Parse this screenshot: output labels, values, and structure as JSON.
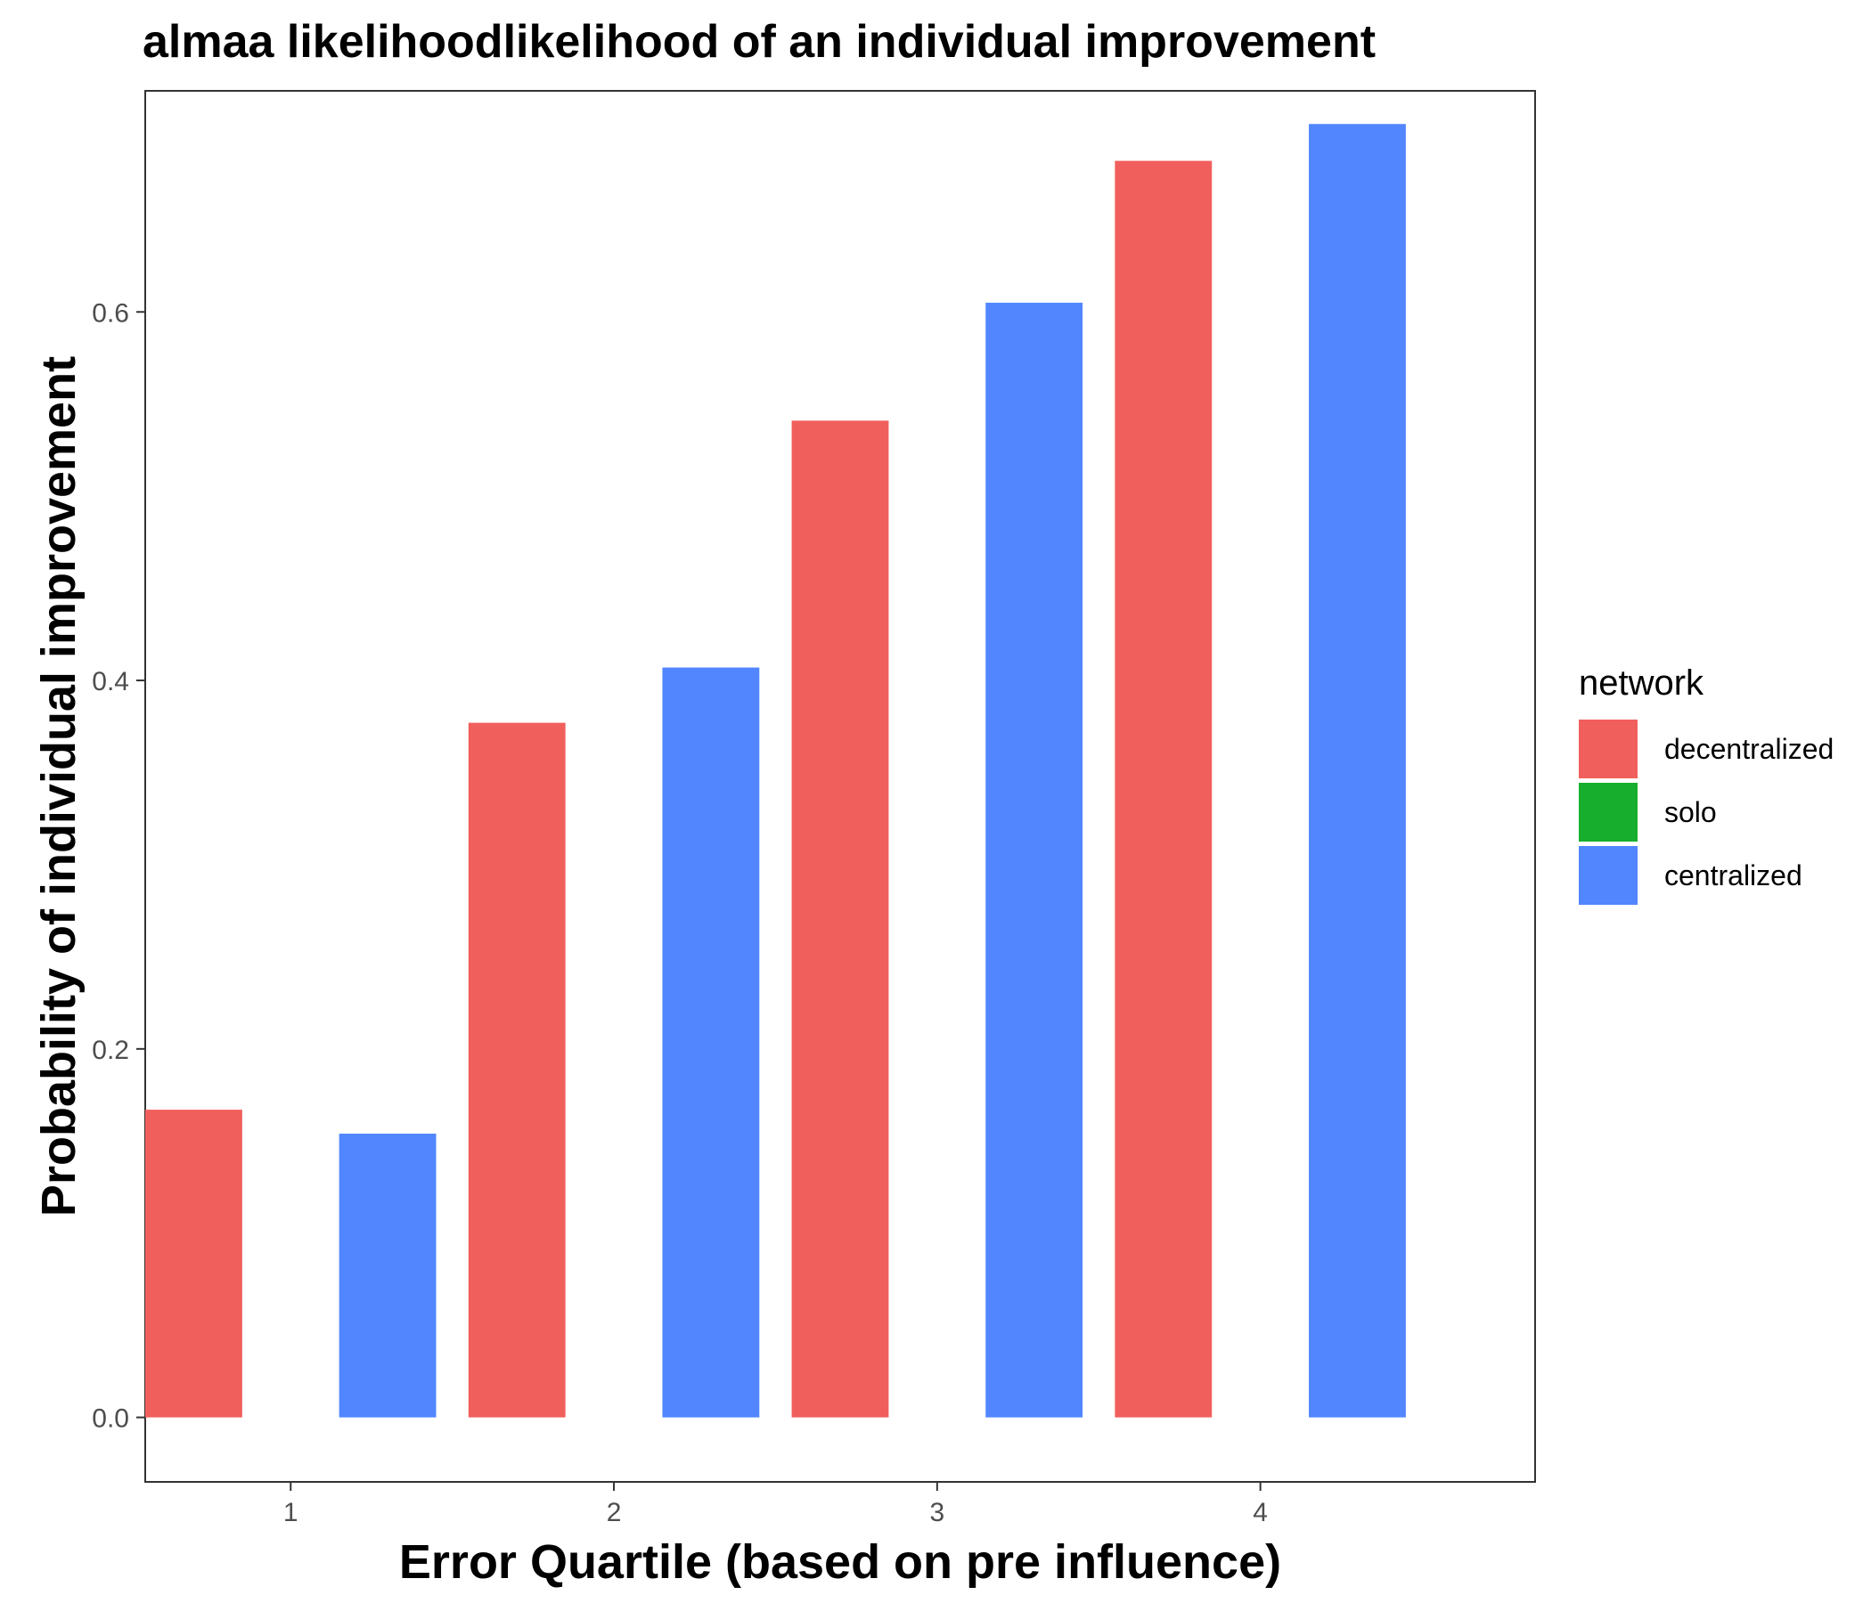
{
  "chart_data": {
    "type": "bar",
    "title": "almaa likelihoodlikelihood of an individual improvement",
    "xlabel": "Error Quartile (based on pre influence)",
    "ylabel": "Probability of individual improvement",
    "x_ticks": [
      "1",
      "2",
      "3",
      "4"
    ],
    "y_ticks": [
      "0.0",
      "0.2",
      "0.4",
      "0.6"
    ],
    "xlim": [
      0.55,
      4.85
    ],
    "ylim": [
      -0.035,
      0.72
    ],
    "grid": false,
    "legend": {
      "title": "network",
      "position": "right",
      "entries": [
        {
          "label": "decentralized",
          "color": "#F15F5C"
        },
        {
          "label": "solo",
          "color": "#18AE2D"
        },
        {
          "label": "centralized",
          "color": "#5186FF"
        }
      ]
    },
    "bar_width_data_units": 0.3,
    "bars": [
      {
        "x": 0.7,
        "value": 0.167,
        "series": "decentralized"
      },
      {
        "x": 1.3,
        "value": 0.154,
        "series": "centralized"
      },
      {
        "x": 1.7,
        "value": 0.377,
        "series": "decentralized"
      },
      {
        "x": 2.3,
        "value": 0.407,
        "series": "centralized"
      },
      {
        "x": 2.7,
        "value": 0.541,
        "series": "decentralized"
      },
      {
        "x": 3.3,
        "value": 0.605,
        "series": "centralized"
      },
      {
        "x": 3.7,
        "value": 0.682,
        "series": "decentralized"
      },
      {
        "x": 4.3,
        "value": 0.702,
        "series": "centralized"
      }
    ]
  }
}
